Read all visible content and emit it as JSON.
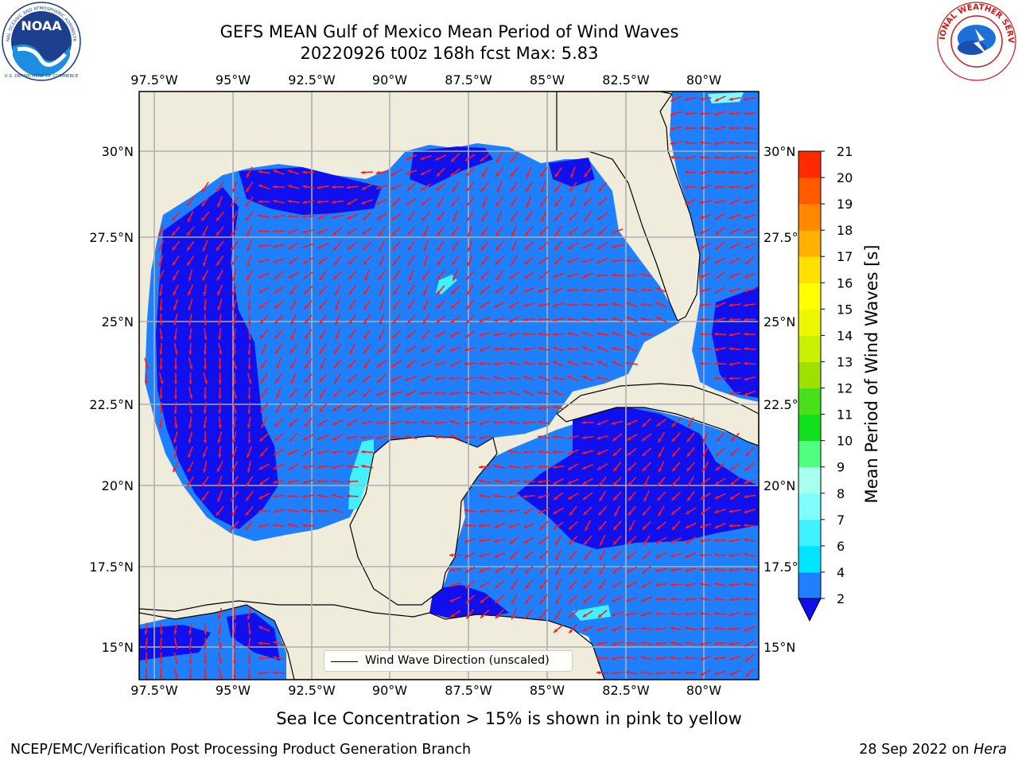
{
  "header": {
    "title_line1": "GEFS MEAN Gulf of Mexico Mean Period of Wind Waves",
    "title_line2": "20220926 t00z 168h fcst   Max: 5.83"
  },
  "logos": {
    "noaa_text": "NOAA",
    "noaa_ring_text": "NATIONAL OCEANIC AND ATMOSPHERIC ADMINISTRATION",
    "noaa_ring_bottom": "U.S. DEPARTMENT OF COMMERCE",
    "nws_ring_text": "NATIONAL WEATHER SERVICE"
  },
  "map": {
    "lon_ticks": [
      "97.5°W",
      "95°W",
      "92.5°W",
      "90°W",
      "87.5°W",
      "85°W",
      "82.5°W",
      "80°W"
    ],
    "lat_ticks": [
      "30°N",
      "27.5°N",
      "25°N",
      "22.5°N",
      "20°N",
      "17.5°N",
      "15°N"
    ],
    "lon_range": [
      -98,
      -78.2
    ],
    "lat_range": [
      14,
      31.7
    ],
    "grid": true
  },
  "legend": {
    "label": "Wind Wave Direction (unscaled)"
  },
  "colorbar": {
    "label": "Mean Period of Wind Waves [s]",
    "ticks": [
      "2",
      "4",
      "6",
      "7",
      "8",
      "9",
      "10",
      "11",
      "12",
      "13",
      "14",
      "15",
      "16",
      "17",
      "18",
      "19",
      "20",
      "21"
    ],
    "colors": [
      "#1e7fff",
      "#00e5ff",
      "#40f2ff",
      "#80fcff",
      "#a8ffee",
      "#50ff80",
      "#10e020",
      "#48e018",
      "#a0e000",
      "#c8f000",
      "#eef600",
      "#ffff00",
      "#ffe000",
      "#ffb000",
      "#ff8800",
      "#ff5a00",
      "#ff2a00"
    ],
    "extend_color": "#1010ee"
  },
  "footer": {
    "note": "Sea Ice Concentration > 15% is shown in pink to yellow",
    "left": "NCEP/EMC/Verification Post Processing Product Generation Branch",
    "date": "28 Sep 2022 on",
    "host": "Hera"
  }
}
